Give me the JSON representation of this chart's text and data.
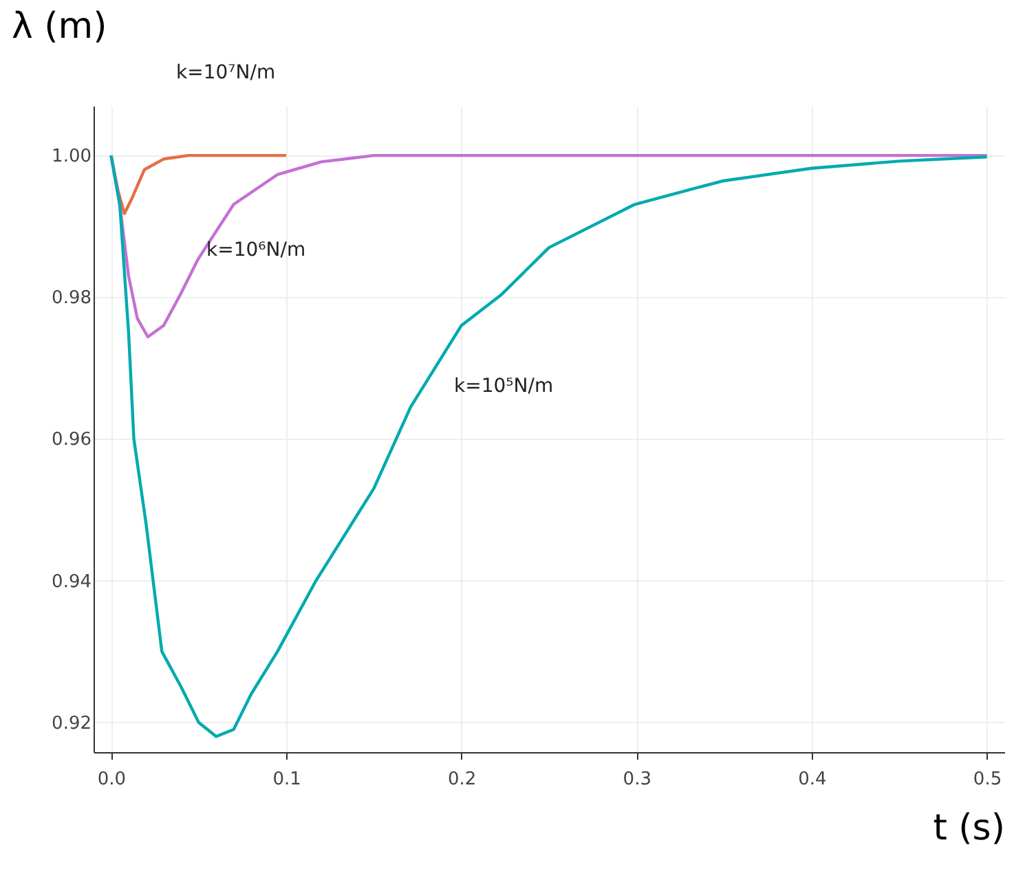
{
  "chart_data": {
    "type": "line",
    "xlabel": "t (s)",
    "ylabel": "λ (m)",
    "xlim": [
      -0.01,
      0.51
    ],
    "ylim": [
      0.9158,
      1.007
    ],
    "xticks": [
      {
        "value": 0,
        "label": "0.0"
      },
      {
        "value": 0.1,
        "label": "0.1"
      },
      {
        "value": 0.2,
        "label": "0.2"
      },
      {
        "value": 0.3,
        "label": "0.3"
      },
      {
        "value": 0.4,
        "label": "0.4"
      },
      {
        "value": 0.5,
        "label": "0.5"
      }
    ],
    "yticks": [
      {
        "value": 0.92,
        "label": "0.92"
      },
      {
        "value": 0.94,
        "label": "0.94"
      },
      {
        "value": 0.96,
        "label": "0.96"
      },
      {
        "value": 0.98,
        "label": "0.98"
      },
      {
        "value": 1.0,
        "label": "1.00"
      }
    ],
    "grid": true,
    "line_style": "solid",
    "marker": "none",
    "series": [
      {
        "color": "#e36f47",
        "x": [
          0,
          0.004,
          0.0076,
          0.012,
          0.019,
          0.03,
          0.044,
          0.1
        ],
        "values": [
          1.0,
          0.995,
          0.9918,
          0.994,
          0.998,
          0.9995,
          1.0,
          1.0
        ]
      },
      {
        "color": "#c371d2",
        "x": [
          0,
          0.005,
          0.01,
          0.015,
          0.021,
          0.03,
          0.0396,
          0.0495,
          0.07,
          0.095,
          0.12,
          0.15,
          0.2,
          0.3,
          0.4,
          0.5
        ],
        "values": [
          1.0,
          0.993,
          0.983,
          0.977,
          0.9744,
          0.976,
          0.9804,
          0.9853,
          0.9931,
          0.9973,
          0.9991,
          1.0,
          1.0,
          1.0,
          1.0,
          1.0
        ]
      },
      {
        "color": "#00aaae",
        "x": [
          0,
          0.005,
          0.01,
          0.013,
          0.02,
          0.024,
          0.029,
          0.04,
          0.05,
          0.06,
          0.07,
          0.08,
          0.095,
          0.117,
          0.15,
          0.171,
          0.2,
          0.223,
          0.25,
          0.299,
          0.349,
          0.4,
          0.45,
          0.5
        ],
        "values": [
          1.0,
          0.993,
          0.975,
          0.96,
          0.948,
          0.94,
          0.93,
          0.925,
          0.92,
          0.918,
          0.919,
          0.924,
          0.93,
          0.94,
          0.953,
          0.9645,
          0.976,
          0.9804,
          0.987,
          0.9931,
          0.9964,
          0.9982,
          0.9992,
          0.9998
        ]
      }
    ],
    "annotations": [
      "k=10⁷N/m",
      "k=10⁶N/m",
      "k=10⁵N/m"
    ]
  }
}
